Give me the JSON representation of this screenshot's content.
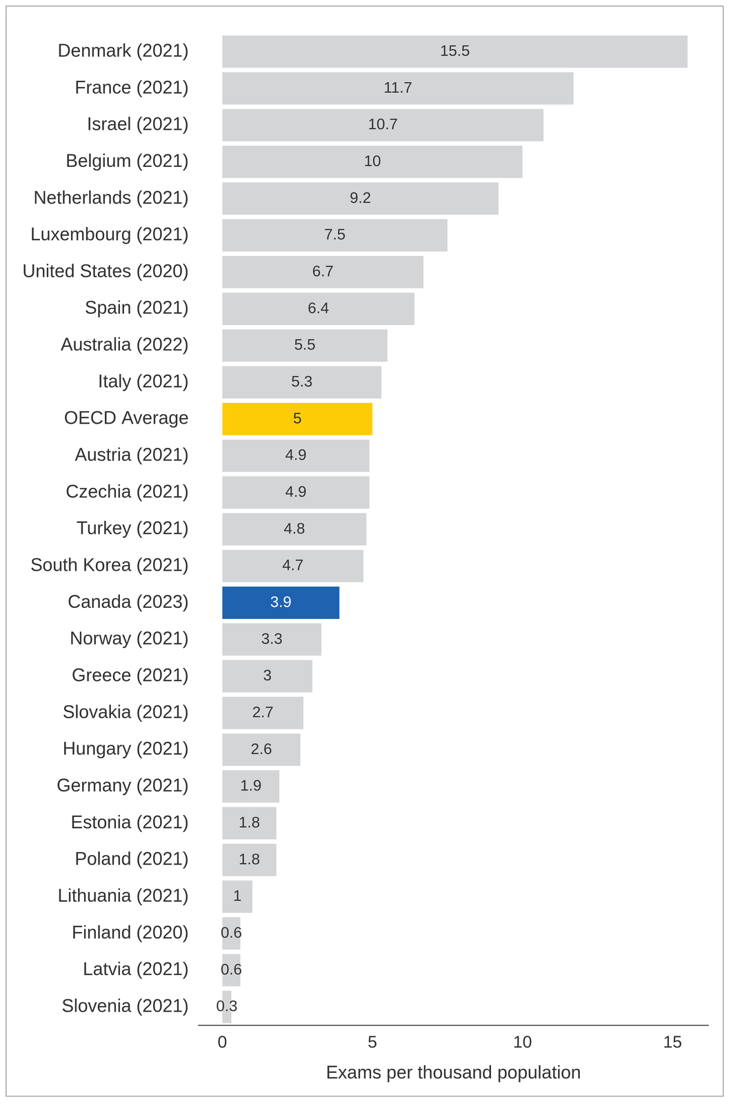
{
  "chart_data": {
    "type": "bar",
    "orientation": "horizontal",
    "x_label": "Exams per thousand population",
    "categories": [
      "Denmark (2021)",
      "France (2021)",
      "Israel (2021)",
      "Belgium (2021)",
      "Netherlands (2021)",
      "Luxembourg (2021)",
      "United States (2020)",
      "Spain (2021)",
      "Australia (2022)",
      "Italy (2021)",
      "OECD Average",
      "Austria (2021)",
      "Czechia (2021)",
      "Turkey (2021)",
      "South Korea (2021)",
      "Canada (2023)",
      "Norway (2021)",
      "Greece (2021)",
      "Slovakia (2021)",
      "Hungary (2021)",
      "Germany (2021)",
      "Estonia (2021)",
      "Poland (2021)",
      "Lithuania (2021)",
      "Finland (2020)",
      "Latvia (2021)",
      "Slovenia (2021)"
    ],
    "values": [
      15.5,
      11.7,
      10.7,
      10,
      9.2,
      7.5,
      6.7,
      6.4,
      5.5,
      5.3,
      5,
      4.9,
      4.9,
      4.8,
      4.7,
      3.9,
      3.3,
      3,
      2.7,
      2.6,
      1.9,
      1.8,
      1.8,
      1,
      0.6,
      0.6,
      0.3
    ],
    "colors": [
      "#d3d5d7",
      "#d3d5d7",
      "#d3d5d7",
      "#d3d5d7",
      "#d3d5d7",
      "#d3d5d7",
      "#d3d5d7",
      "#d3d5d7",
      "#d3d5d7",
      "#d3d5d7",
      "#fecc07",
      "#d3d5d7",
      "#d3d5d7",
      "#d3d5d7",
      "#d3d5d7",
      "#1f62b0",
      "#d3d5d7",
      "#d3d5d7",
      "#d3d5d7",
      "#d3d5d7",
      "#d3d5d7",
      "#d3d5d7",
      "#d3d5d7",
      "#d3d5d7",
      "#d3d5d7",
      "#d3d5d7",
      "#d3d5d7"
    ],
    "xlim": [
      -0.8,
      16.2
    ],
    "xticks": [
      0,
      5,
      10,
      15
    ],
    "grid": false,
    "data_labels": true
  }
}
